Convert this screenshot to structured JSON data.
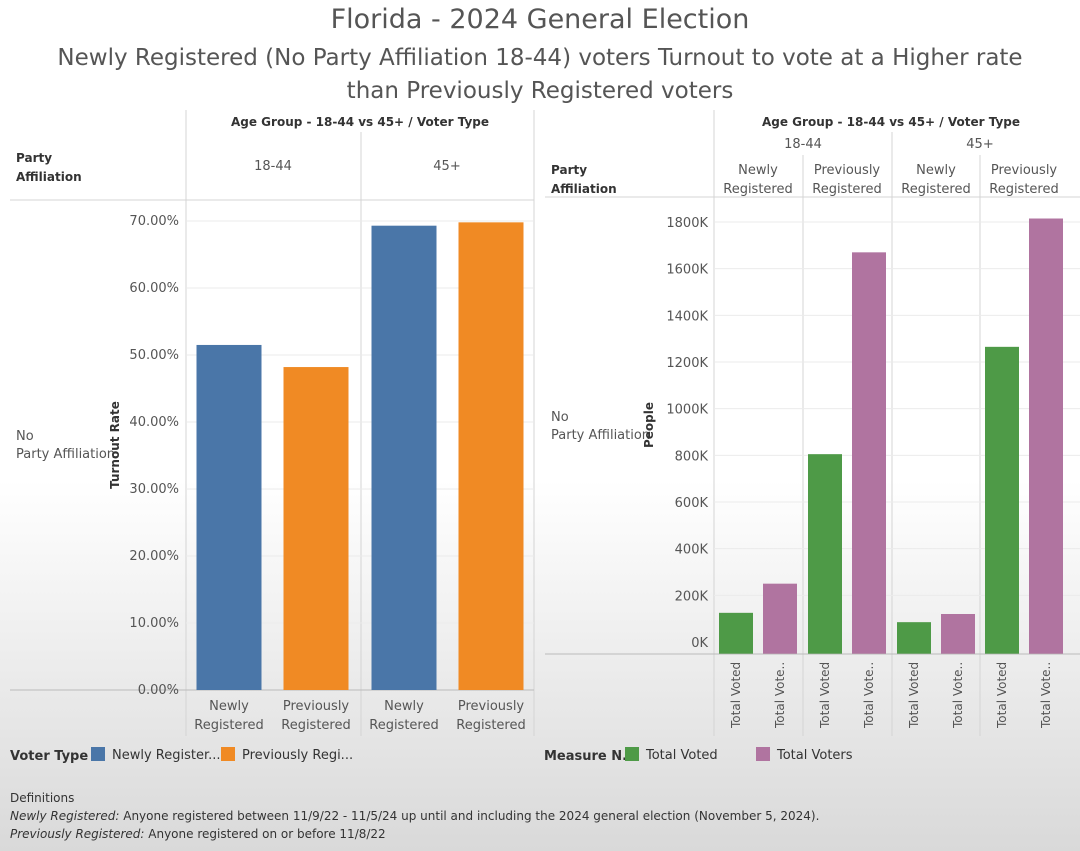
{
  "title": "Florida - 2024 General Election",
  "subtitle": "Newly Registered (No Party Affiliation 18-44) voters Turnout to vote at a Higher rate than Previously Registered voters",
  "colors": {
    "newly": "#4a76a8",
    "previously": "#f08a24",
    "voted": "#4e9a47",
    "voters": "#b074a0",
    "grid": "#ebebeb",
    "rule": "#d4d4d4"
  },
  "left_panel": {
    "row_header": "Party Affiliation",
    "column_header": "Age Group - 18-44 vs 45+ / Voter Type",
    "row_label": "No Party Affiliation"
  },
  "right_panel": {
    "row_header": "Party Affiliation",
    "column_header": "Age Group - 18-44 vs 45+ / Voter Type",
    "row_label": "No Party Affiliation"
  },
  "legend_left": {
    "title": "Voter Type",
    "items": [
      {
        "label": "Newly Register...",
        "color": "#4a76a8"
      },
      {
        "label": "Previously Regi...",
        "color": "#f08a24"
      }
    ]
  },
  "legend_right": {
    "title": "Measure N...",
    "items": [
      {
        "label": "Total Voted",
        "color": "#4e9a47"
      },
      {
        "label": "Total Voters",
        "color": "#b074a0"
      }
    ]
  },
  "definitions": {
    "heading": "Definitions",
    "newly_term": "Newly Registered:",
    "newly_text": " Anyone registered between 11/9/22 - 11/5/24 up until and including the 2024 general election (November 5, 2024).",
    "previously_term": "Previously Registered:",
    "previously_text": " Anyone registered on or before 11/8/22"
  },
  "chart_data": [
    {
      "type": "bar",
      "groups": [
        "18-44",
        "45+"
      ],
      "categories": [
        "Newly Registered",
        "Previously Registered"
      ],
      "category_labels": [
        [
          "Newly",
          "Registered"
        ],
        [
          "Previously",
          "Registered"
        ]
      ],
      "values": [
        [
          51.5,
          48.2
        ],
        [
          69.3,
          69.8
        ]
      ],
      "ylabel": "Turnout Rate",
      "ylim": [
        0,
        70
      ],
      "yticks": [
        "0.00%",
        "10.00%",
        "20.00%",
        "30.00%",
        "40.00%",
        "50.00%",
        "60.00%",
        "70.00%"
      ],
      "grid": true
    },
    {
      "type": "bar",
      "groups": [
        "18-44",
        "45+"
      ],
      "categories": [
        "Newly Registered",
        "Previously Registered"
      ],
      "category_labels": [
        [
          "Newly",
          "Registered"
        ],
        [
          "Previously",
          "Registered"
        ]
      ],
      "measures": [
        "Total Voted",
        "Total Voters"
      ],
      "measure_tick_labels": [
        "Total Voted",
        "Total Vote.."
      ],
      "values": [
        [
          [
            125000,
            250000
          ],
          [
            805000,
            1670000
          ]
        ],
        [
          [
            85000,
            120000
          ],
          [
            1265000,
            1815000
          ]
        ]
      ],
      "ylabel": "People",
      "ylim": [
        -50000,
        1850000
      ],
      "yticks": [
        {
          "value": 0,
          "label": "0K"
        },
        {
          "value": 200000,
          "label": "200K"
        },
        {
          "value": 400000,
          "label": "400K"
        },
        {
          "value": 600000,
          "label": "600K"
        },
        {
          "value": 800000,
          "label": "800K"
        },
        {
          "value": 1000000,
          "label": "1000K"
        },
        {
          "value": 1200000,
          "label": "1200K"
        },
        {
          "value": 1400000,
          "label": "1400K"
        },
        {
          "value": 1600000,
          "label": "1600K"
        },
        {
          "value": 1800000,
          "label": "1800K"
        }
      ],
      "grid": true
    }
  ]
}
